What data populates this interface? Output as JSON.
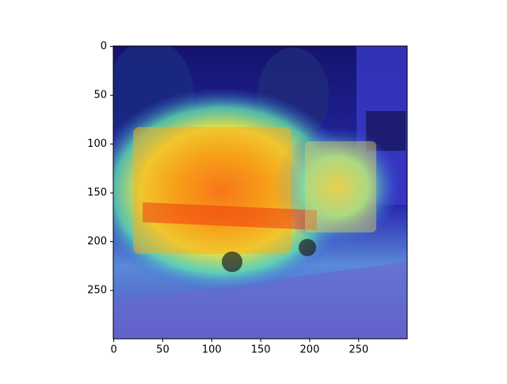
{
  "chart_data": {
    "type": "image",
    "xlim": [
      -0.5,
      299.5
    ],
    "ylim": [
      299.5,
      -0.5
    ],
    "xticks": [
      0,
      50,
      100,
      150,
      200,
      250
    ],
    "yticks": [
      0,
      50,
      100,
      150,
      200,
      250
    ]
  }
}
